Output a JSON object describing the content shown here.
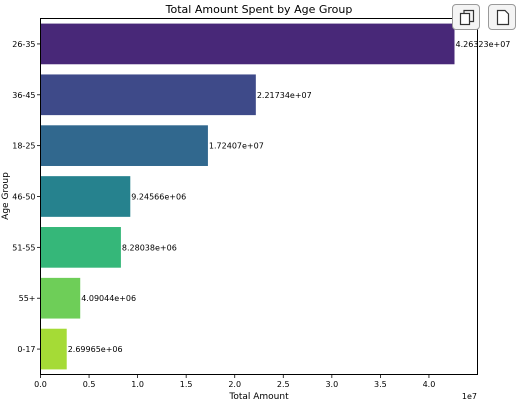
{
  "chart_data": {
    "type": "bar",
    "orientation": "horizontal",
    "title": "Total Amount Spent by Age Group",
    "xlabel": "Total Amount",
    "ylabel": "Age Group",
    "x_offset_label": "1e7",
    "xlim": [
      0,
      4.5
    ],
    "xticks": [
      "0.0",
      "0.5",
      "1.0",
      "1.5",
      "2.0",
      "2.5",
      "3.0",
      "3.5",
      "4.0"
    ],
    "categories": [
      "26-35",
      "36-45",
      "18-25",
      "46-50",
      "51-55",
      "55+",
      "0-17"
    ],
    "values": [
      4.26323,
      2.21734,
      1.72407,
      0.924566,
      0.828038,
      0.409044,
      0.269965
    ],
    "value_labels": [
      "4.26323e+07",
      "2.21734e+07",
      "1.72407e+07",
      "9.24566e+06",
      "8.28038e+06",
      "4.09044e+06",
      "2.69965e+06"
    ],
    "colors": [
      "#482878",
      "#3e4a89",
      "#31688e",
      "#26828e",
      "#35b779",
      "#6ece58",
      "#a5db36"
    ],
    "grid": false,
    "legend": "none"
  },
  "toolbar": {
    "icons": [
      "copy-icon",
      "document-icon"
    ]
  }
}
